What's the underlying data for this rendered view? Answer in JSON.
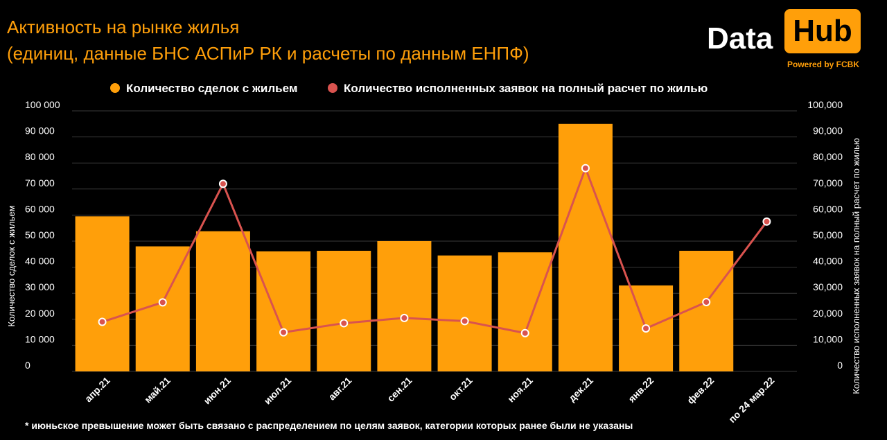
{
  "header": {
    "title_line1": "Активность на рынке жилья",
    "title_line2": "(единиц, данные БНС АСПиР РК и расчеты по данным ЕНПФ)"
  },
  "logo": {
    "word_left": "Data",
    "word_right": "Hub",
    "tagline": "Powered by FCBK"
  },
  "footnote": "* июньское превышение может быть связано с распределением по целям заявок, категории которых ранее были не указаны",
  "colors": {
    "bar": "#ff9f0a",
    "line": "#d9534f",
    "title": "#ff9f0a"
  },
  "chart_data": {
    "type": "bar",
    "categories": [
      "апр.21",
      "май.21",
      "июн.21",
      "июл.21",
      "авг.21",
      "сен.21",
      "окт.21",
      "ноя.21",
      "дек.21",
      "янв.22",
      "фев.22",
      "по 24 мар.22"
    ],
    "series": [
      {
        "name": "Количество сделок с жильем",
        "type": "bar",
        "axis": "left",
        "values": [
          59500,
          48000,
          53800,
          46100,
          46300,
          50000,
          44500,
          45700,
          95000,
          33000,
          46300,
          null
        ]
      },
      {
        "name": "Количество исполненных заявок на полный расчет по жилью",
        "type": "line",
        "axis": "right",
        "values": [
          19000,
          26500,
          72000,
          15000,
          18500,
          20500,
          19300,
          14700,
          78000,
          16500,
          26600,
          57500
        ]
      }
    ],
    "ylabel_left": "Количество сделок с жильем",
    "ylabel_right": "Количество исполненных заявок на полный расчет по жилью",
    "ylim": [
      0,
      100000
    ],
    "yticks_left": [
      "0",
      "10 000",
      "20 000",
      "30 000",
      "40 000",
      "50 000",
      "60 000",
      "70 000",
      "80 000",
      "90 000",
      "100 000"
    ],
    "yticks_right": [
      "0",
      "10,000",
      "20,000",
      "30,000",
      "40,000",
      "50,000",
      "60,000",
      "70,000",
      "80,000",
      "90,000",
      "100,000"
    ],
    "grid": true,
    "legend_position": "top"
  }
}
